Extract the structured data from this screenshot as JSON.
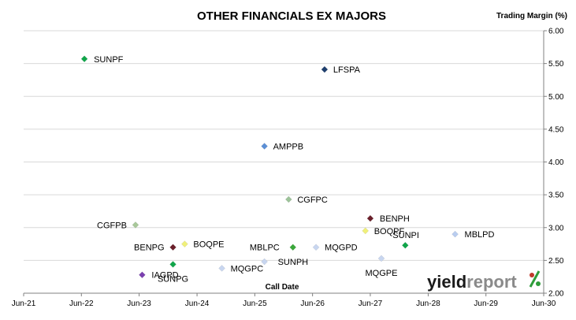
{
  "chart_data": {
    "type": "scatter",
    "title": "OTHER FINANCIALS EX MAJORS",
    "xlabel": "Call Date",
    "ylabel": "Trading Margin (%)",
    "xlim": [
      "2021-06-01",
      "2030-06-01"
    ],
    "ylim": [
      2.0,
      6.0
    ],
    "x_ticks": [
      "Jun-21",
      "Jun-22",
      "Jun-23",
      "Jun-24",
      "Jun-25",
      "Jun-26",
      "Jun-27",
      "Jun-28",
      "Jun-29",
      "Jun-30"
    ],
    "y_ticks": [
      "2.00",
      "2.50",
      "3.00",
      "3.50",
      "4.00",
      "4.50",
      "5.00",
      "5.50",
      "6.00"
    ],
    "y_axis_side": "right",
    "grid": "horizontal",
    "points": [
      {
        "label": "SUNPF",
        "x": "2022-06-20",
        "y": 5.57,
        "color": "#10a64a"
      },
      {
        "label": "LFSPA",
        "x": "2026-08-16",
        "y": 5.41,
        "color": "#1f3f6e"
      },
      {
        "label": "AMPPB",
        "x": "2025-08-01",
        "y": 4.24,
        "color": "#5b8fd6"
      },
      {
        "label": "CGFPC",
        "x": "2026-01-01",
        "y": 3.43,
        "color": "#9dc39a"
      },
      {
        "label": "BENPH",
        "x": "2027-06-01",
        "y": 3.14,
        "color": "#6b1f2a"
      },
      {
        "label": "CGFPB",
        "x": "2023-05-09",
        "y": 3.04,
        "color": "#a8c89a"
      },
      {
        "label": "BOQPF",
        "x": "2027-05-01",
        "y": 2.95,
        "color": "#f0f07a"
      },
      {
        "label": "MBLPD",
        "x": "2028-11-18",
        "y": 2.9,
        "color": "#b9cdf0"
      },
      {
        "label": "BOQPE",
        "x": "2024-03-15",
        "y": 2.75,
        "color": "#f0f07a"
      },
      {
        "label": "SUNPI",
        "x": "2028-01-08",
        "y": 2.73,
        "color": "#10a64a"
      },
      {
        "label": "BENPG",
        "x": "2024-01-01",
        "y": 2.7,
        "color": "#6b1f2a"
      },
      {
        "label": "MBLPC",
        "x": "2026-01-28",
        "y": 2.7,
        "color": "#3aa83a"
      },
      {
        "label": "MQGPD",
        "x": "2026-06-23",
        "y": 2.7,
        "color": "#c8d6f0"
      },
      {
        "label": "MQGPE",
        "x": "2027-08-10",
        "y": 2.53,
        "color": "#c8d6f0"
      },
      {
        "label": "SUNPH",
        "x": "2025-08-01",
        "y": 2.48,
        "color": "#c8d6f0"
      },
      {
        "label": "SUNPG",
        "x": "2024-01-01",
        "y": 2.44,
        "color": "#10a64a"
      },
      {
        "label": "MQGPC",
        "x": "2024-11-05",
        "y": 2.38,
        "color": "#c8d6f0"
      },
      {
        "label": "IAGPD",
        "x": "2023-06-20",
        "y": 2.28,
        "color": "#7b3fb0"
      }
    ]
  },
  "logo": {
    "text_dark": "yield",
    "text_light": "report",
    "symbol": "%",
    "color_dark": "#1a1a1a",
    "color_light": "#8a8a8a",
    "color_symbol_top": "#c0392b",
    "color_symbol_bottom": "#2e9d3a"
  }
}
